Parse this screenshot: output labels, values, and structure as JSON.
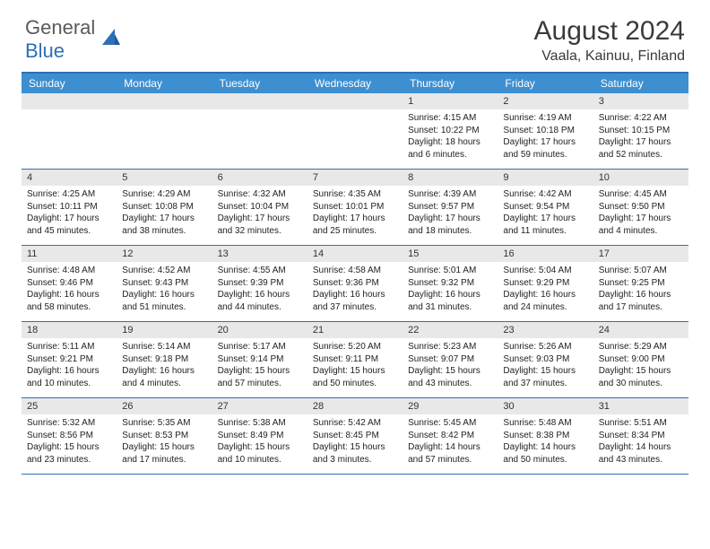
{
  "logo": {
    "general": "General",
    "blue": "Blue"
  },
  "title": "August 2024",
  "location": "Vaala, Kainuu, Finland",
  "header_bg": "#3e8fd0",
  "border_color": "#2e6fb5",
  "daynum_bg": "#e8e8e8",
  "day_headers": [
    "Sunday",
    "Monday",
    "Tuesday",
    "Wednesday",
    "Thursday",
    "Friday",
    "Saturday"
  ],
  "weeks": [
    [
      {
        "n": "",
        "lines": []
      },
      {
        "n": "",
        "lines": []
      },
      {
        "n": "",
        "lines": []
      },
      {
        "n": "",
        "lines": []
      },
      {
        "n": "1",
        "lines": [
          "Sunrise: 4:15 AM",
          "Sunset: 10:22 PM",
          "Daylight: 18 hours and 6 minutes."
        ]
      },
      {
        "n": "2",
        "lines": [
          "Sunrise: 4:19 AM",
          "Sunset: 10:18 PM",
          "Daylight: 17 hours and 59 minutes."
        ]
      },
      {
        "n": "3",
        "lines": [
          "Sunrise: 4:22 AM",
          "Sunset: 10:15 PM",
          "Daylight: 17 hours and 52 minutes."
        ]
      }
    ],
    [
      {
        "n": "4",
        "lines": [
          "Sunrise: 4:25 AM",
          "Sunset: 10:11 PM",
          "Daylight: 17 hours and 45 minutes."
        ]
      },
      {
        "n": "5",
        "lines": [
          "Sunrise: 4:29 AM",
          "Sunset: 10:08 PM",
          "Daylight: 17 hours and 38 minutes."
        ]
      },
      {
        "n": "6",
        "lines": [
          "Sunrise: 4:32 AM",
          "Sunset: 10:04 PM",
          "Daylight: 17 hours and 32 minutes."
        ]
      },
      {
        "n": "7",
        "lines": [
          "Sunrise: 4:35 AM",
          "Sunset: 10:01 PM",
          "Daylight: 17 hours and 25 minutes."
        ]
      },
      {
        "n": "8",
        "lines": [
          "Sunrise: 4:39 AM",
          "Sunset: 9:57 PM",
          "Daylight: 17 hours and 18 minutes."
        ]
      },
      {
        "n": "9",
        "lines": [
          "Sunrise: 4:42 AM",
          "Sunset: 9:54 PM",
          "Daylight: 17 hours and 11 minutes."
        ]
      },
      {
        "n": "10",
        "lines": [
          "Sunrise: 4:45 AM",
          "Sunset: 9:50 PM",
          "Daylight: 17 hours and 4 minutes."
        ]
      }
    ],
    [
      {
        "n": "11",
        "lines": [
          "Sunrise: 4:48 AM",
          "Sunset: 9:46 PM",
          "Daylight: 16 hours and 58 minutes."
        ]
      },
      {
        "n": "12",
        "lines": [
          "Sunrise: 4:52 AM",
          "Sunset: 9:43 PM",
          "Daylight: 16 hours and 51 minutes."
        ]
      },
      {
        "n": "13",
        "lines": [
          "Sunrise: 4:55 AM",
          "Sunset: 9:39 PM",
          "Daylight: 16 hours and 44 minutes."
        ]
      },
      {
        "n": "14",
        "lines": [
          "Sunrise: 4:58 AM",
          "Sunset: 9:36 PM",
          "Daylight: 16 hours and 37 minutes."
        ]
      },
      {
        "n": "15",
        "lines": [
          "Sunrise: 5:01 AM",
          "Sunset: 9:32 PM",
          "Daylight: 16 hours and 31 minutes."
        ]
      },
      {
        "n": "16",
        "lines": [
          "Sunrise: 5:04 AM",
          "Sunset: 9:29 PM",
          "Daylight: 16 hours and 24 minutes."
        ]
      },
      {
        "n": "17",
        "lines": [
          "Sunrise: 5:07 AM",
          "Sunset: 9:25 PM",
          "Daylight: 16 hours and 17 minutes."
        ]
      }
    ],
    [
      {
        "n": "18",
        "lines": [
          "Sunrise: 5:11 AM",
          "Sunset: 9:21 PM",
          "Daylight: 16 hours and 10 minutes."
        ]
      },
      {
        "n": "19",
        "lines": [
          "Sunrise: 5:14 AM",
          "Sunset: 9:18 PM",
          "Daylight: 16 hours and 4 minutes."
        ]
      },
      {
        "n": "20",
        "lines": [
          "Sunrise: 5:17 AM",
          "Sunset: 9:14 PM",
          "Daylight: 15 hours and 57 minutes."
        ]
      },
      {
        "n": "21",
        "lines": [
          "Sunrise: 5:20 AM",
          "Sunset: 9:11 PM",
          "Daylight: 15 hours and 50 minutes."
        ]
      },
      {
        "n": "22",
        "lines": [
          "Sunrise: 5:23 AM",
          "Sunset: 9:07 PM",
          "Daylight: 15 hours and 43 minutes."
        ]
      },
      {
        "n": "23",
        "lines": [
          "Sunrise: 5:26 AM",
          "Sunset: 9:03 PM",
          "Daylight: 15 hours and 37 minutes."
        ]
      },
      {
        "n": "24",
        "lines": [
          "Sunrise: 5:29 AM",
          "Sunset: 9:00 PM",
          "Daylight: 15 hours and 30 minutes."
        ]
      }
    ],
    [
      {
        "n": "25",
        "lines": [
          "Sunrise: 5:32 AM",
          "Sunset: 8:56 PM",
          "Daylight: 15 hours and 23 minutes."
        ]
      },
      {
        "n": "26",
        "lines": [
          "Sunrise: 5:35 AM",
          "Sunset: 8:53 PM",
          "Daylight: 15 hours and 17 minutes."
        ]
      },
      {
        "n": "27",
        "lines": [
          "Sunrise: 5:38 AM",
          "Sunset: 8:49 PM",
          "Daylight: 15 hours and 10 minutes."
        ]
      },
      {
        "n": "28",
        "lines": [
          "Sunrise: 5:42 AM",
          "Sunset: 8:45 PM",
          "Daylight: 15 hours and 3 minutes."
        ]
      },
      {
        "n": "29",
        "lines": [
          "Sunrise: 5:45 AM",
          "Sunset: 8:42 PM",
          "Daylight: 14 hours and 57 minutes."
        ]
      },
      {
        "n": "30",
        "lines": [
          "Sunrise: 5:48 AM",
          "Sunset: 8:38 PM",
          "Daylight: 14 hours and 50 minutes."
        ]
      },
      {
        "n": "31",
        "lines": [
          "Sunrise: 5:51 AM",
          "Sunset: 8:34 PM",
          "Daylight: 14 hours and 43 minutes."
        ]
      }
    ]
  ]
}
